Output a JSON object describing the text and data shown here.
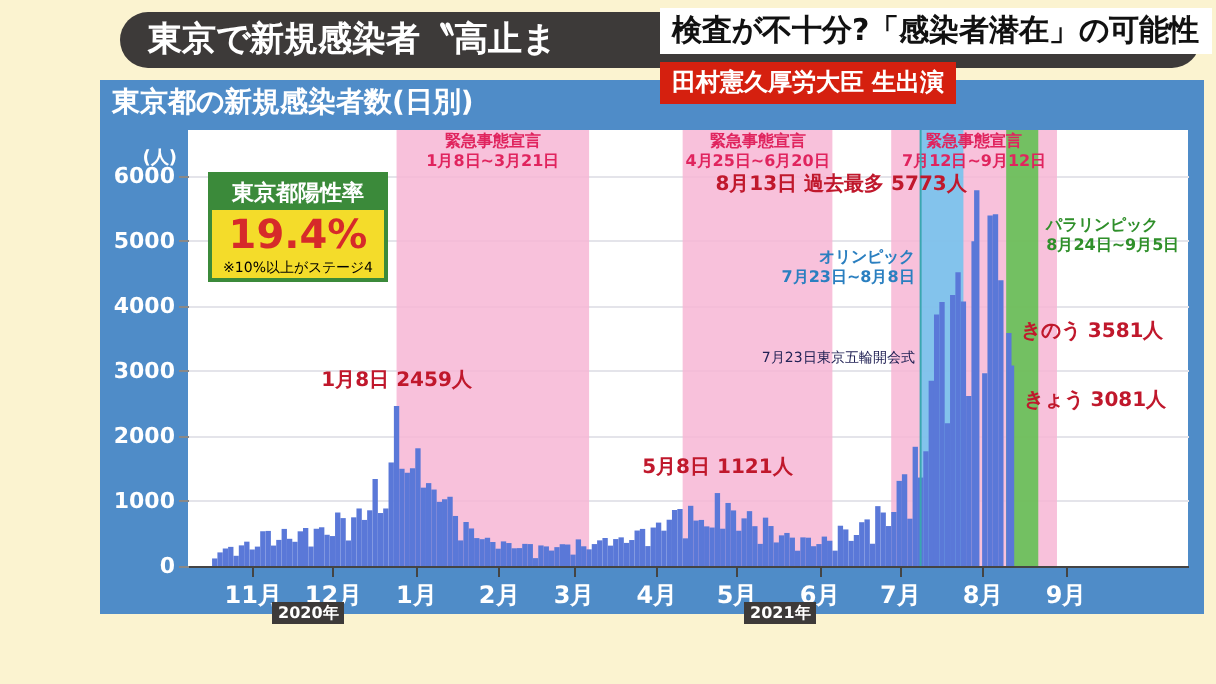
{
  "chart_data": {
    "type": "bar",
    "title": "東京都の新規感染者数(日別)",
    "subtitle": "検査が不十分?「感染者潜在」の可能性",
    "ylabel": "(人)",
    "x": [
      "2020-11-01",
      "2020-11-03",
      "2020-11-05",
      "2020-11-07",
      "2020-11-09",
      "2020-11-11",
      "2020-11-13",
      "2020-11-15",
      "2020-11-17",
      "2020-11-19",
      "2020-11-21",
      "2020-11-23",
      "2020-11-25",
      "2020-11-27",
      "2020-11-29",
      "2020-12-01",
      "2020-12-03",
      "2020-12-05",
      "2020-12-07",
      "2020-12-09",
      "2020-12-11",
      "2020-12-13",
      "2020-12-15",
      "2020-12-17",
      "2020-12-19",
      "2020-12-21",
      "2020-12-23",
      "2020-12-25",
      "2020-12-27",
      "2020-12-29",
      "2020-12-31",
      "2021-01-02",
      "2021-01-04",
      "2021-01-06",
      "2021-01-08",
      "2021-01-10",
      "2021-01-12",
      "2021-01-14",
      "2021-01-16",
      "2021-01-18",
      "2021-01-20",
      "2021-01-22",
      "2021-01-24",
      "2021-01-26",
      "2021-01-28",
      "2021-01-30",
      "2021-02-01",
      "2021-02-03",
      "2021-02-05",
      "2021-02-07",
      "2021-02-09",
      "2021-02-11",
      "2021-02-13",
      "2021-02-15",
      "2021-02-17",
      "2021-02-19",
      "2021-02-21",
      "2021-02-23",
      "2021-02-25",
      "2021-02-27",
      "2021-03-01",
      "2021-03-03",
      "2021-03-05",
      "2021-03-07",
      "2021-03-09",
      "2021-03-11",
      "2021-03-13",
      "2021-03-15",
      "2021-03-17",
      "2021-03-19",
      "2021-03-21",
      "2021-03-23",
      "2021-03-25",
      "2021-03-27",
      "2021-03-29",
      "2021-03-31",
      "2021-04-02",
      "2021-04-04",
      "2021-04-06",
      "2021-04-08",
      "2021-04-10",
      "2021-04-12",
      "2021-04-14",
      "2021-04-16",
      "2021-04-18",
      "2021-04-20",
      "2021-04-22",
      "2021-04-24",
      "2021-04-26",
      "2021-04-28",
      "2021-04-30",
      "2021-05-02",
      "2021-05-04",
      "2021-05-06",
      "2021-05-08",
      "2021-05-10",
      "2021-05-12",
      "2021-05-14",
      "2021-05-16",
      "2021-05-18",
      "2021-05-20",
      "2021-05-22",
      "2021-05-24",
      "2021-05-26",
      "2021-05-28",
      "2021-05-30",
      "2021-06-01",
      "2021-06-03",
      "2021-06-05",
      "2021-06-07",
      "2021-06-09",
      "2021-06-11",
      "2021-06-13",
      "2021-06-15",
      "2021-06-17",
      "2021-06-19",
      "2021-06-21",
      "2021-06-23",
      "2021-06-25",
      "2021-06-27",
      "2021-06-29",
      "2021-07-01",
      "2021-07-03",
      "2021-07-05",
      "2021-07-07",
      "2021-07-09",
      "2021-07-11",
      "2021-07-13",
      "2021-07-15",
      "2021-07-17",
      "2021-07-19",
      "2021-07-21",
      "2021-07-23",
      "2021-07-25",
      "2021-07-27",
      "2021-07-29",
      "2021-07-31",
      "2021-08-02",
      "2021-08-04",
      "2021-08-06",
      "2021-08-08",
      "2021-08-10",
      "2021-08-12",
      "2021-08-13",
      "2021-08-16",
      "2021-08-18",
      "2021-08-20",
      "2021-08-22",
      "2021-08-25",
      "2021-08-26"
    ],
    "values": [
      116,
      209,
      269,
      294,
      157,
      317,
      374,
      255,
      298,
      534,
      539,
      314,
      401,
      570,
      418,
      372,
      533,
      584,
      299,
      572,
      595,
      480,
      460,
      822,
      736,
      392,
      748,
      884,
      708,
      856,
      1337,
      814,
      884,
      1591,
      2459,
      1494,
      1433,
      1502,
      1809,
      1204,
      1274,
      1175,
      986,
      1026,
      1064,
      769,
      393,
      676,
      577,
      429,
      412,
      434,
      369,
      266,
      378,
      353,
      272,
      275,
      340,
      337,
      121,
      316,
      301,
      237,
      290,
      335,
      330,
      175,
      409,
      303,
      256,
      337,
      394,
      430,
      313,
      414,
      440,
      355,
      399,
      545,
      570,
      306,
      591,
      667,
      543,
      711,
      861,
      876,
      425,
      925,
      698,
      708,
      609,
      591,
      1121,
      573,
      969,
      854,
      542,
      732,
      843,
      612,
      340,
      743,
      614,
      362,
      471,
      508,
      436,
      235,
      440,
      435,
      304,
      337,
      452,
      388,
      236,
      619,
      562,
      386,
      476,
      673,
      716,
      342,
      920,
      822,
      614,
      830,
      1308,
      1410,
      727,
      1832,
      1359,
      1763,
      2848,
      3865,
      4058,
      2195,
      4166,
      4515,
      4066,
      2612,
      4989,
      5773,
      2962,
      5386,
      5405,
      4392,
      3581,
      3081
    ],
    "color": "#5a78d8",
    "xlim": [
      "2020-10-22",
      "2021-10-31"
    ],
    "xticks": [
      {
        "value": "2020-11-15",
        "label": "11月"
      },
      {
        "value": "2020-12-15",
        "label": "12月"
      },
      {
        "value": "2021-01-15",
        "label": "1月"
      },
      {
        "value": "2021-02-15",
        "label": "2月"
      },
      {
        "value": "2021-03-15",
        "label": "3月"
      },
      {
        "value": "2021-04-15",
        "label": "4月"
      },
      {
        "value": "2021-05-15",
        "label": "5月"
      },
      {
        "value": "2021-06-15",
        "label": "6月"
      },
      {
        "value": "2021-07-15",
        "label": "7月"
      },
      {
        "value": "2021-08-15",
        "label": "8月"
      },
      {
        "value": "2021-09-15",
        "label": "9月"
      }
    ],
    "ylim": [
      0,
      6700
    ],
    "yticks": [
      0,
      1000,
      2000,
      3000,
      4000,
      5000,
      6000
    ],
    "grid": "y",
    "bands": [
      {
        "axis": "x",
        "from": "2021-01-08",
        "to": "2021-03-21",
        "label": "緊急事態宣言\n1月8日~3月21日",
        "color": "#f7b6d5"
      },
      {
        "axis": "x",
        "from": "2021-04-25",
        "to": "2021-06-20",
        "label": "緊急事態宣言\n4月25日~6月20日",
        "color": "#f7b6d5"
      },
      {
        "axis": "x",
        "from": "2021-07-12",
        "to": "2021-09-12",
        "label": "緊急事態宣言\n7月12日~9月12日",
        "color": "#f7b6d5"
      },
      {
        "axis": "x",
        "from": "2021-07-23",
        "to": "2021-08-08",
        "label": "オリンピック\n7月23日~8月8日",
        "color": "#6fc3ef"
      },
      {
        "axis": "x",
        "from": "2021-08-24",
        "to": "2021-09-05",
        "label": "パラリンピック\n8月24日~9月5日",
        "color": "#5cbf4c"
      }
    ],
    "ref_lines": [
      {
        "axis": "x",
        "value": "2021-07-23",
        "label": "7月23日東京五輪開会式",
        "color": "#3aa6b0"
      }
    ],
    "annotations": [
      "東京で新規感染者〝高止ま",
      "田村憲久厚労大臣 生出演",
      "東京都陽性率",
      "19.4%",
      "※10%以上がステージ4",
      "2020年",
      "2021年",
      {
        "text": "1月8日 2459人",
        "x": "2021-01-08",
        "y": 2459
      },
      {
        "text": "5月8日 1121人",
        "x": "2021-05-08",
        "y": 1121
      },
      {
        "text": "8月13日 過去最多 5773人",
        "x": "2021-08-13",
        "y": 5773
      },
      {
        "text": "きのう 3581人",
        "x": "2021-08-25",
        "y": 3581
      },
      {
        "text": "きょう 3081人",
        "x": "2021-08-26",
        "y": 3081
      }
    ]
  }
}
